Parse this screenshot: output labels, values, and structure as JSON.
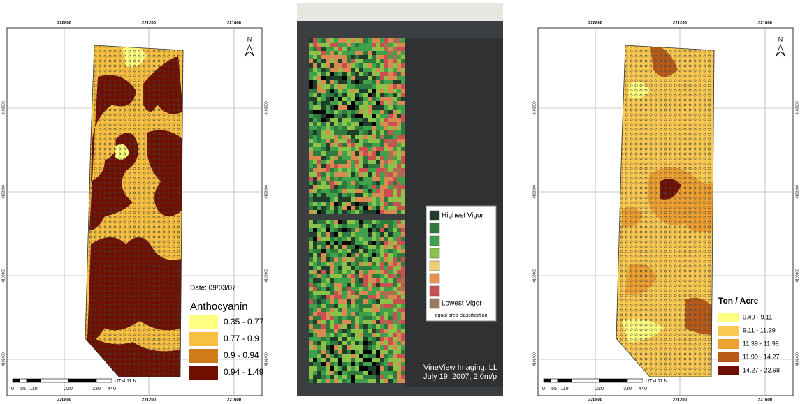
{
  "maps": [
    {
      "x_labels": [
        "220800",
        "221200",
        "221600"
      ],
      "y_labels": [
        "4103600",
        "4103200",
        "4102800",
        "4102400"
      ],
      "north": "N",
      "date": "Date: 09/03/07",
      "legend_title": "Anthocyanin",
      "legend": [
        {
          "label": "0.35 - 0.77",
          "color": "#ffff80"
        },
        {
          "label": "0.77 - 0.9",
          "color": "#f8c040"
        },
        {
          "label": "0.9 - 0.94",
          "color": "#d07a18"
        },
        {
          "label": "0.94 - 1.49",
          "color": "#6e0f00"
        }
      ],
      "scale_labels": [
        "0",
        "55",
        "110",
        "220",
        "330",
        "440"
      ],
      "scale_unit": "UTM 11 N"
    },
    {
      "legend": [
        {
          "label": "Highest Vigor",
          "color": "#1f3d2a"
        },
        {
          "color": "#2e7a3e"
        },
        {
          "color": "#3fa24a"
        },
        {
          "color": "#8cc24a"
        },
        {
          "color": "#f0d070"
        },
        {
          "color": "#e89050"
        },
        {
          "color": "#c85050"
        },
        {
          "label": "Lowest Vigor",
          "color": "#9a7a5a"
        }
      ],
      "legend_note": "equal area classification",
      "credit": [
        "VineView Imaging, LL",
        "July 19, 2007, 2.0m/p"
      ]
    },
    {
      "x_labels": [
        "220800",
        "221200",
        "221600"
      ],
      "y_labels": [
        "4103600",
        "4103200",
        "4102800",
        "4102400"
      ],
      "north": "N",
      "legend_title": "Ton / Acre",
      "legend": [
        {
          "label": "0.40 - 9.11",
          "color": "#ffff80"
        },
        {
          "label": "9.11 - 11.39",
          "color": "#f8c850"
        },
        {
          "label": "11.39 - 11.99",
          "color": "#eda030"
        },
        {
          "label": "11.99 - 14.27",
          "color": "#b85a18"
        },
        {
          "label": "14.27 - 22.98",
          "color": "#6e0f00"
        }
      ],
      "scale_labels": [
        "0",
        "55",
        "110",
        "220",
        "330",
        "440"
      ],
      "scale_unit": "UTM 11 N"
    }
  ]
}
